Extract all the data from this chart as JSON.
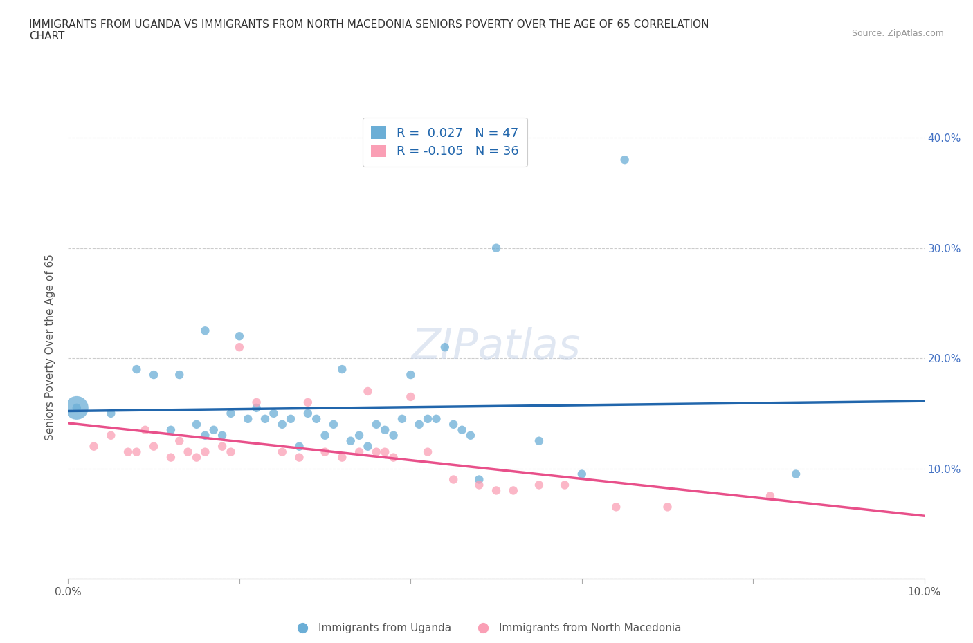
{
  "title": "IMMIGRANTS FROM UGANDA VS IMMIGRANTS FROM NORTH MACEDONIA SENIORS POVERTY OVER THE AGE OF 65 CORRELATION\nCHART",
  "source_text": "Source: ZipAtlas.com",
  "ylabel": "Seniors Poverty Over the Age of 65",
  "xlim": [
    0.0,
    0.1
  ],
  "ylim": [
    0.0,
    0.42
  ],
  "legend1_label": "R =  0.027   N = 47",
  "legend2_label": "R = -0.105   N = 36",
  "color_uganda": "#6baed6",
  "color_macedonia": "#fa9fb5",
  "trendline_color_uganda": "#2166ac",
  "trendline_color_macedonia": "#e8508a",
  "watermark": "ZIPatlas",
  "uganda_x": [
    0.001,
    0.005,
    0.008,
    0.01,
    0.012,
    0.013,
    0.015,
    0.016,
    0.016,
    0.017,
    0.018,
    0.019,
    0.02,
    0.021,
    0.022,
    0.023,
    0.024,
    0.025,
    0.026,
    0.027,
    0.028,
    0.029,
    0.03,
    0.031,
    0.032,
    0.033,
    0.034,
    0.035,
    0.036,
    0.037,
    0.038,
    0.039,
    0.04,
    0.041,
    0.042,
    0.043,
    0.044,
    0.045,
    0.046,
    0.047,
    0.048,
    0.05,
    0.055,
    0.06,
    0.065,
    0.085,
    0.001
  ],
  "uganda_y": [
    0.155,
    0.15,
    0.19,
    0.185,
    0.135,
    0.185,
    0.14,
    0.225,
    0.13,
    0.135,
    0.13,
    0.15,
    0.22,
    0.145,
    0.155,
    0.145,
    0.15,
    0.14,
    0.145,
    0.12,
    0.15,
    0.145,
    0.13,
    0.14,
    0.19,
    0.125,
    0.13,
    0.12,
    0.14,
    0.135,
    0.13,
    0.145,
    0.185,
    0.14,
    0.145,
    0.145,
    0.21,
    0.14,
    0.135,
    0.13,
    0.09,
    0.3,
    0.125,
    0.095,
    0.38,
    0.095,
    0.155
  ],
  "uganda_size": [
    80,
    80,
    80,
    80,
    80,
    80,
    80,
    80,
    80,
    80,
    80,
    80,
    80,
    80,
    80,
    80,
    80,
    80,
    80,
    80,
    80,
    80,
    80,
    80,
    80,
    80,
    80,
    80,
    80,
    80,
    80,
    80,
    80,
    80,
    80,
    80,
    80,
    80,
    80,
    80,
    80,
    80,
    80,
    80,
    80,
    80,
    600
  ],
  "macedonia_x": [
    0.003,
    0.005,
    0.007,
    0.008,
    0.009,
    0.01,
    0.012,
    0.013,
    0.014,
    0.015,
    0.016,
    0.018,
    0.019,
    0.02,
    0.022,
    0.025,
    0.027,
    0.028,
    0.03,
    0.032,
    0.034,
    0.035,
    0.036,
    0.037,
    0.038,
    0.04,
    0.042,
    0.045,
    0.048,
    0.05,
    0.052,
    0.055,
    0.058,
    0.064,
    0.07,
    0.082
  ],
  "macedonia_y": [
    0.12,
    0.13,
    0.115,
    0.115,
    0.135,
    0.12,
    0.11,
    0.125,
    0.115,
    0.11,
    0.115,
    0.12,
    0.115,
    0.21,
    0.16,
    0.115,
    0.11,
    0.16,
    0.115,
    0.11,
    0.115,
    0.17,
    0.115,
    0.115,
    0.11,
    0.165,
    0.115,
    0.09,
    0.085,
    0.08,
    0.08,
    0.085,
    0.085,
    0.065,
    0.065,
    0.075
  ],
  "macedonia_size": [
    80,
    80,
    80,
    80,
    80,
    80,
    80,
    80,
    80,
    80,
    80,
    80,
    80,
    80,
    80,
    80,
    80,
    80,
    80,
    80,
    80,
    80,
    80,
    80,
    80,
    80,
    80,
    80,
    80,
    80,
    80,
    80,
    80,
    80,
    80,
    80
  ]
}
